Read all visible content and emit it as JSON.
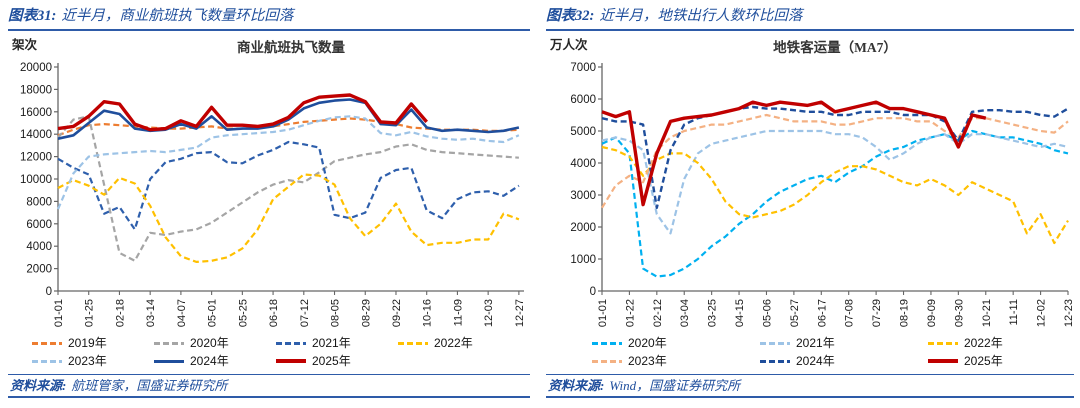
{
  "panels": [
    {
      "figure_label": "图表31:",
      "figure_title": "近半月，商业航班执飞数量环比回落",
      "source_prefix": "资料来源:",
      "source_text": "航班管家，国盛证券研究所"
    },
    {
      "figure_label": "图表32:",
      "figure_title": "近半月，地铁出行人数环比回落",
      "source_prefix": "资料来源:",
      "source_text": "Wind，国盛证券研究所"
    }
  ],
  "colors": {
    "caption_blue": "#1f4e9c",
    "rule_blue": "#2e5ba8",
    "axis_gray": "#666666"
  },
  "chart_data": [
    {
      "type": "line",
      "title": "商业航班执飞数量",
      "ylabel": "架次",
      "ylim": [
        0,
        20000
      ],
      "ytick_step": 2000,
      "grid": false,
      "legend_position": "bottom",
      "x_tick_labels": [
        "01-01",
        "01-25",
        "02-18",
        "03-14",
        "04-07",
        "05-01",
        "05-25",
        "06-18",
        "07-12",
        "08-05",
        "08-29",
        "09-22",
        "10-16",
        "11-09",
        "12-03",
        "12-27"
      ],
      "x_tick_interval_days": 24,
      "sample_interval_days": 12,
      "x_max_day": 365,
      "series": [
        {
          "name": "2019年",
          "color": "#ED7D31",
          "dash": "dashed",
          "width": 2.2,
          "values": [
            13900,
            14400,
            14800,
            14900,
            14800,
            14700,
            14600,
            14500,
            14500,
            14600,
            14700,
            14500,
            14500,
            14600,
            14700,
            14900,
            15100,
            15200,
            15300,
            15400,
            15300,
            15100,
            14900,
            14600,
            14500,
            14400,
            14400,
            14400,
            14300,
            14300,
            14400
          ]
        },
        {
          "name": "2020年",
          "color": "#A5A5A5",
          "dash": "dashed",
          "width": 2.2,
          "values": [
            13700,
            15300,
            15600,
            9500,
            3400,
            2700,
            5200,
            5000,
            5300,
            5500,
            6100,
            7000,
            7900,
            8800,
            9500,
            9900,
            9700,
            10600,
            11600,
            11900,
            12200,
            12400,
            12900,
            13100,
            12600,
            12400,
            12300,
            12200,
            12100,
            12000,
            11900
          ]
        },
        {
          "name": "2021年",
          "color": "#2E5FAC",
          "dash": "dashed",
          "width": 2.2,
          "values": [
            11800,
            11000,
            10400,
            6900,
            7500,
            5500,
            10000,
            11500,
            11800,
            12300,
            12400,
            11500,
            11400,
            12100,
            12600,
            13300,
            13100,
            12800,
            6800,
            6500,
            7000,
            10100,
            10800,
            11000,
            7200,
            6500,
            8200,
            8800,
            8900,
            8500,
            9400
          ]
        },
        {
          "name": "2022年",
          "color": "#FFC000",
          "dash": "dashed",
          "width": 2.2,
          "values": [
            9200,
            9900,
            9400,
            8600,
            10100,
            9600,
            7600,
            4800,
            3100,
            2600,
            2700,
            3000,
            3800,
            5500,
            8200,
            9300,
            10400,
            10300,
            9500,
            6500,
            4900,
            6000,
            7800,
            5300,
            4100,
            4300,
            4300,
            4600,
            4600,
            6900,
            6400
          ]
        },
        {
          "name": "2023年",
          "color": "#9DC3E6",
          "dash": "dashed",
          "width": 2.2,
          "values": [
            7300,
            10500,
            12000,
            12200,
            12300,
            12400,
            12500,
            12400,
            12600,
            12800,
            13700,
            13900,
            14000,
            14100,
            14200,
            14400,
            14800,
            15200,
            15500,
            15600,
            15400,
            14100,
            13900,
            14200,
            13800,
            13600,
            13500,
            13600,
            13400,
            13300,
            13900
          ]
        },
        {
          "name": "2024年",
          "color": "#1F4E9C",
          "dash": "solid",
          "width": 2.6,
          "values": [
            13600,
            13900,
            15000,
            16100,
            15800,
            14500,
            14300,
            14400,
            14900,
            14500,
            15600,
            14400,
            14500,
            14500,
            14700,
            15300,
            16300,
            16800,
            17000,
            17100,
            16800,
            14900,
            14800,
            16200,
            14600,
            14300,
            14400,
            14300,
            14200,
            14300,
            14600
          ]
        },
        {
          "name": "2025年",
          "color": "#C00000",
          "dash": "solid",
          "width": 3.4,
          "values": [
            14500,
            14700,
            15600,
            16900,
            16700,
            14900,
            14400,
            14500,
            15200,
            14700,
            16400,
            14800,
            14800,
            14700,
            14900,
            15500,
            16800,
            17300,
            17400,
            17500,
            16900,
            15100,
            15000,
            16700,
            15100,
            null,
            null,
            null,
            null,
            null,
            null
          ]
        }
      ]
    },
    {
      "type": "line",
      "title": "地铁客运量（MA7）",
      "ylabel": "万人次",
      "ylim": [
        0,
        7000
      ],
      "ytick_step": 1000,
      "grid": false,
      "legend_position": "bottom",
      "x_tick_labels": [
        "01-01",
        "01-22",
        "02-12",
        "03-04",
        "03-25",
        "04-15",
        "05-06",
        "05-27",
        "06-17",
        "07-08",
        "07-29",
        "08-19",
        "09-09",
        "09-30",
        "10-21",
        "11-11",
        "12-02",
        "12-23"
      ],
      "x_tick_interval_days": 21,
      "sample_interval_days": 10.5,
      "x_max_day": 358,
      "series": [
        {
          "name": "2020年",
          "color": "#00B0F0",
          "dash": "dashed",
          "width": 2.2,
          "values": [
            4600,
            4800,
            4300,
            700,
            450,
            500,
            700,
            1000,
            1400,
            1700,
            2100,
            2400,
            2800,
            3100,
            3300,
            3500,
            3600,
            3400,
            3700,
            3900,
            4200,
            4400,
            4500,
            4700,
            4800,
            4900,
            4700,
            5000,
            4900,
            4800,
            4800,
            4700,
            4600,
            4400,
            4300
          ]
        },
        {
          "name": "2021年",
          "color": "#9DC3E6",
          "dash": "dashed",
          "width": 2.2,
          "values": [
            4700,
            4800,
            4700,
            4400,
            2400,
            1800,
            3500,
            4300,
            4600,
            4700,
            4800,
            4900,
            5000,
            5000,
            5000,
            5000,
            5000,
            4900,
            4900,
            4800,
            4500,
            4100,
            4300,
            4600,
            4800,
            4900,
            4600,
            4900,
            4900,
            4800,
            4700,
            4600,
            4500,
            4600,
            4500
          ]
        },
        {
          "name": "2022年",
          "color": "#FFC000",
          "dash": "dashed",
          "width": 2.2,
          "values": [
            4500,
            4400,
            4200,
            3600,
            4100,
            4300,
            4300,
            4000,
            3500,
            2800,
            2400,
            2300,
            2400,
            2500,
            2700,
            3000,
            3400,
            3700,
            3900,
            3900,
            3800,
            3600,
            3400,
            3300,
            3500,
            3300,
            3000,
            3400,
            3200,
            3000,
            2800,
            1800,
            2400,
            1500,
            2200
          ]
        },
        {
          "name": "2023年",
          "color": "#F4B183",
          "dash": "dashed",
          "width": 2.2,
          "values": [
            2600,
            3300,
            3600,
            3400,
            4400,
            4800,
            5000,
            5100,
            5200,
            5200,
            5300,
            5400,
            5500,
            5400,
            5300,
            5300,
            5300,
            5200,
            5200,
            5300,
            5400,
            5400,
            5400,
            5300,
            5300,
            5000,
            4800,
            5400,
            5400,
            5300,
            5200,
            5100,
            5000,
            4950,
            5300
          ]
        },
        {
          "name": "2024年",
          "color": "#1F4E9C",
          "dash": "dashed",
          "width": 2.4,
          "values": [
            5400,
            5300,
            5300,
            5200,
            2600,
            4400,
            5200,
            5400,
            5500,
            5600,
            5700,
            5750,
            5700,
            5700,
            5650,
            5600,
            5600,
            5500,
            5500,
            5600,
            5600,
            5600,
            5500,
            5500,
            5500,
            5300,
            4700,
            5600,
            5650,
            5650,
            5600,
            5600,
            5500,
            5450,
            5700
          ]
        },
        {
          "name": "2025年",
          "color": "#C00000",
          "dash": "solid",
          "width": 3.4,
          "values": [
            5600,
            5450,
            5600,
            2700,
            4300,
            5300,
            5400,
            5450,
            5500,
            5600,
            5700,
            5900,
            5800,
            5900,
            5850,
            5800,
            5900,
            5600,
            5700,
            5800,
            5900,
            5700,
            5700,
            5600,
            5500,
            5400,
            4500,
            5500,
            5400,
            null,
            null,
            null,
            null,
            null,
            null
          ]
        }
      ]
    }
  ]
}
